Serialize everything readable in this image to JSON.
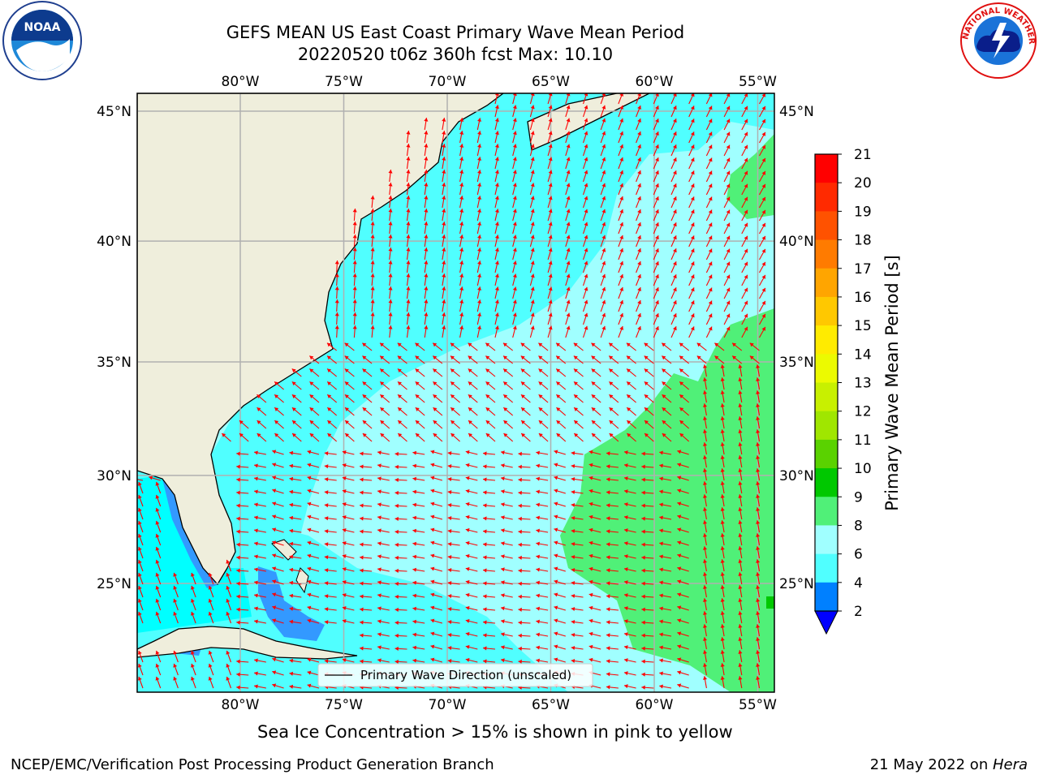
{
  "title": {
    "line1": "GEFS MEAN US East Coast Primary Wave Mean Period",
    "line2": "20220520 t06z 360h fcst   Max: 10.10"
  },
  "logos": {
    "left": "NOAA",
    "left_ring_text": "NATIONAL OCEANIC AND ATMOSPHERIC ADMINISTRATION · U.S. DEPARTMENT OF COMMERCE",
    "right_ring_text": "NATIONAL WEATHER SERVICE"
  },
  "map": {
    "lon_labels": [
      "80°W",
      "75°W",
      "70°W",
      "65°W",
      "60°W",
      "55°W"
    ],
    "lon_values": [
      -80,
      -75,
      -70,
      -65,
      -60,
      -55
    ],
    "lat_labels": [
      "45°N",
      "40°N",
      "35°N",
      "30°N",
      "25°N"
    ],
    "lat_values": [
      45,
      40,
      35,
      30,
      25
    ],
    "legend_label": "Primary Wave Direction (unscaled)",
    "colors": {
      "land": "#efeedc",
      "arrow": "#ff0000",
      "grid": "#b0b0b0"
    }
  },
  "colorbar": {
    "label": "Primary Wave Mean Period [s]",
    "ticks": [
      "21",
      "20",
      "19",
      "18",
      "17",
      "16",
      "15",
      "14",
      "13",
      "12",
      "11",
      "10",
      "9",
      "8",
      "6",
      "4",
      "2"
    ],
    "colors": [
      "#ff0000",
      "#ff2a00",
      "#ff5200",
      "#ff7b00",
      "#ffa500",
      "#ffc800",
      "#ffeb00",
      "#ecfa00",
      "#c8f000",
      "#a0e600",
      "#5ad200",
      "#00c800",
      "#50f078",
      "#a0ffff",
      "#50ffff",
      "#00ffff",
      "#0080ff"
    ],
    "extend_color": "#0000ff"
  },
  "subtitle": "Sea Ice Concentration > 15% is shown in pink to yellow",
  "footer": {
    "left": "NCEP/EMC/Verification Post Processing Product Generation Branch",
    "date": "21 May 2022 on ",
    "machine": "Hera"
  }
}
